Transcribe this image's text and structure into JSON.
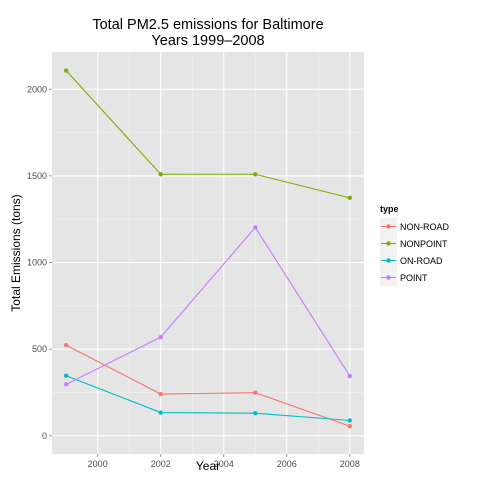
{
  "chart_data": {
    "type": "line",
    "title": "Total PM2.5 emissions for Baltimore",
    "subtitle": "Years 1999–2008",
    "xlabel": "Year",
    "ylabel": "Total Emissions (tons)",
    "x": [
      1999,
      2002,
      2005,
      2008
    ],
    "xlim": [
      1998.55,
      2008.45
    ],
    "ylim": [
      -105,
      2215
    ],
    "x_ticks": [
      2000,
      2002,
      2004,
      2006,
      2008
    ],
    "y_ticks": [
      0,
      500,
      1000,
      1500,
      2000
    ],
    "x_tick_labels": [
      "2000",
      "2002",
      "2004",
      "2006",
      "2008"
    ],
    "y_tick_labels": [
      "0",
      "500",
      "1000",
      "1500",
      "2000"
    ],
    "grid": true,
    "background": "#e5e5e5",
    "legend": {
      "title": "type",
      "placement": "right"
    },
    "series": [
      {
        "name": "NON-ROAD",
        "color": "#f8766d",
        "values": [
          522.9,
          241.0,
          248.9,
          55.8
        ]
      },
      {
        "name": "NONPOINT",
        "color": "#7cae00",
        "values": [
          2107.6,
          1509.5,
          1509.5,
          1373.2
        ]
      },
      {
        "name": "ON-ROAD",
        "color": "#00bfc4",
        "values": [
          346.8,
          134.3,
          130.4,
          88.3
        ]
      },
      {
        "name": "POINT",
        "color": "#c77cff",
        "values": [
          296.8,
          569.3,
          1202.5,
          344.98
        ]
      }
    ]
  }
}
